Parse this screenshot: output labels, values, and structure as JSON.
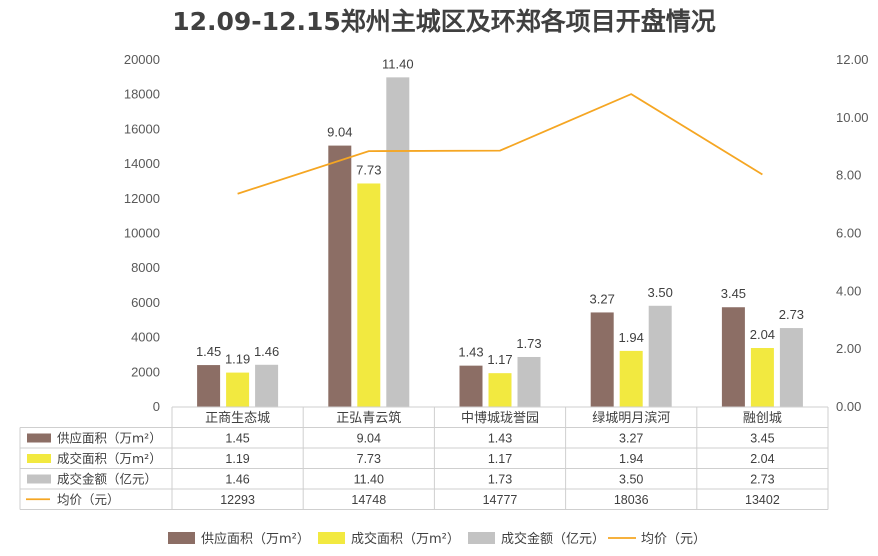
{
  "chart_data": {
    "type": "bar",
    "title": "12.09-12.15郑州主城区及环郑各项目开盘情况",
    "categories": [
      "正商生态城",
      "正弘青云筑",
      "中博城珑誉园",
      "绿城明月滨河",
      "融创城"
    ],
    "series": [
      {
        "name": "供应面积（万m²）",
        "kind": "bar",
        "axis": "right",
        "color": "#8C6E65",
        "values": [
          1.45,
          9.04,
          1.43,
          3.27,
          3.45
        ],
        "labels": [
          "1.45",
          "9.04",
          "1.43",
          "3.27",
          "3.45"
        ]
      },
      {
        "name": "成交面积（万m²）",
        "kind": "bar",
        "axis": "right",
        "color": "#F2E940",
        "values": [
          1.19,
          7.73,
          1.17,
          1.94,
          2.04
        ],
        "labels": [
          "1.19",
          "7.73",
          "1.17",
          "1.94",
          "2.04"
        ]
      },
      {
        "name": "成交金额（亿元）",
        "kind": "bar",
        "axis": "right",
        "color": "#C3C3C3",
        "values": [
          1.46,
          11.4,
          1.73,
          3.5,
          2.73
        ],
        "labels": [
          "1.46",
          "11.40",
          "1.73",
          "3.50",
          "2.73"
        ]
      },
      {
        "name": "均价（元）",
        "kind": "line",
        "axis": "left",
        "color": "#F5A623",
        "values": [
          12293,
          14748,
          14777,
          18036,
          13402
        ],
        "labels": [
          "12293",
          "14748",
          "14777",
          "18036",
          "13402"
        ]
      }
    ],
    "y_left": {
      "min": 0,
      "max": 20000,
      "ticks": [
        "0",
        "2000",
        "4000",
        "6000",
        "8000",
        "10000",
        "12000",
        "14000",
        "16000",
        "18000",
        "20000"
      ]
    },
    "y_right": {
      "min": 0,
      "max": 12,
      "ticks": [
        "0.00",
        "2.00",
        "4.00",
        "6.00",
        "8.00",
        "10.00",
        "12.00"
      ]
    },
    "data_table": true,
    "legend": "bottom"
  }
}
